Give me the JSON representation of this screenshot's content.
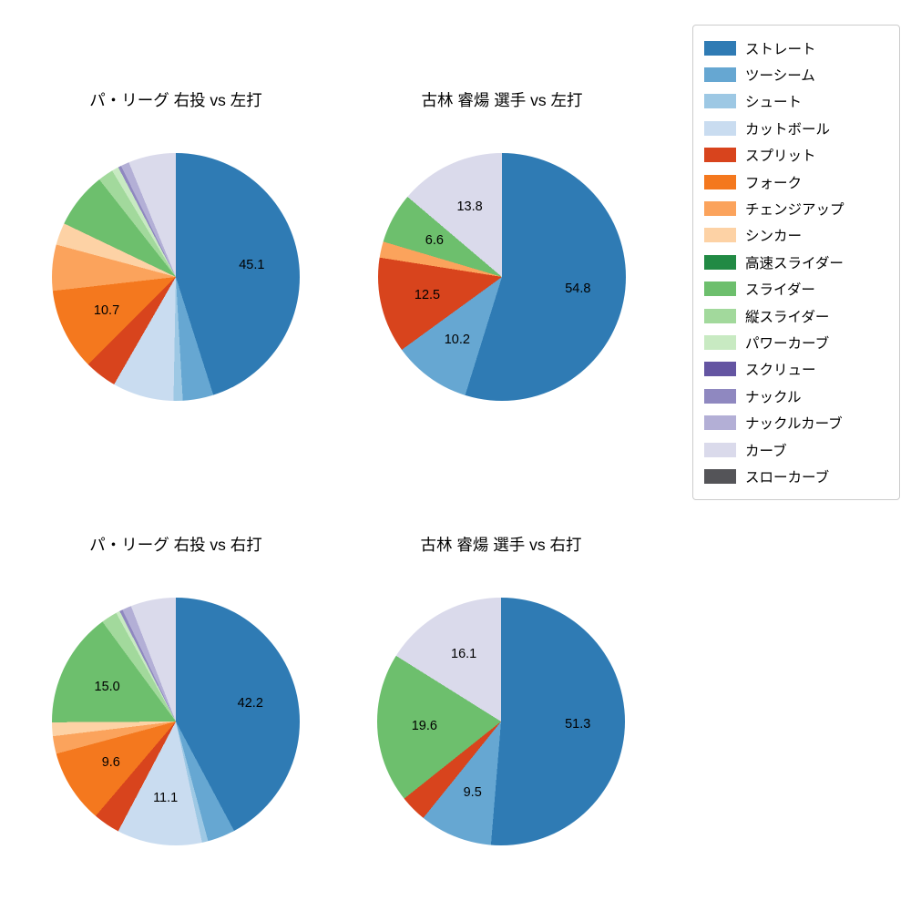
{
  "colors": {
    "ストレート": "#2f7bb4",
    "ツーシーム": "#66a7d2",
    "シュート": "#9dc8e4",
    "カットボール": "#c9dcf0",
    "スプリット": "#d8441d",
    "フォーク": "#f4781e",
    "チェンジアップ": "#fba35c",
    "シンカー": "#fdd2a5",
    "高速スライダー": "#218a44",
    "スライダー": "#6dbf6d",
    "縦スライダー": "#a2d99c",
    "パワーカーブ": "#c8eac2",
    "スクリュー": "#6455a2",
    "ナックル": "#8f88c0",
    "ナックルカーブ": "#b3afd6",
    "カーブ": "#dadaeb",
    "スローカーブ": "#545458"
  },
  "legend": {
    "items": [
      "ストレート",
      "ツーシーム",
      "シュート",
      "カットボール",
      "スプリット",
      "フォーク",
      "チェンジアップ",
      "シンカー",
      "高速スライダー",
      "スライダー",
      "縦スライダー",
      "パワーカーブ",
      "スクリュー",
      "ナックル",
      "ナックルカーブ",
      "カーブ",
      "スローカーブ"
    ]
  },
  "chart_data": [
    {
      "type": "pie",
      "title": "パ・リーグ 右投 vs 左打",
      "legend_position": "right",
      "slices": [
        {
          "name": "ストレート",
          "value": 45.1,
          "label": "45.1"
        },
        {
          "name": "ツーシーム",
          "value": 4.0,
          "label": ""
        },
        {
          "name": "シュート",
          "value": 1.2,
          "label": ""
        },
        {
          "name": "カットボール",
          "value": 8.0,
          "label": ""
        },
        {
          "name": "スプリット",
          "value": 4.2,
          "label": ""
        },
        {
          "name": "フォーク",
          "value": 10.7,
          "label": "10.7"
        },
        {
          "name": "チェンジアップ",
          "value": 6.0,
          "label": ""
        },
        {
          "name": "シンカー",
          "value": 2.9,
          "label": ""
        },
        {
          "name": "スライダー",
          "value": 7.3,
          "label": ""
        },
        {
          "name": "縦スライダー",
          "value": 2.0,
          "label": ""
        },
        {
          "name": "パワーカーブ",
          "value": 0.9,
          "label": ""
        },
        {
          "name": "ナックル",
          "value": 0.4,
          "label": ""
        },
        {
          "name": "ナックルカーブ",
          "value": 1.1,
          "label": ""
        },
        {
          "name": "カーブ",
          "value": 6.2,
          "label": ""
        }
      ]
    },
    {
      "type": "pie",
      "title": "古林 睿煬 選手 vs 左打",
      "legend_position": "right",
      "slices": [
        {
          "name": "ストレート",
          "value": 54.8,
          "label": "54.8"
        },
        {
          "name": "ツーシーム",
          "value": 10.2,
          "label": "10.2"
        },
        {
          "name": "スプリット",
          "value": 12.5,
          "label": "12.5"
        },
        {
          "name": "チェンジアップ",
          "value": 2.1,
          "label": ""
        },
        {
          "name": "スライダー",
          "value": 6.6,
          "label": "6.6"
        },
        {
          "name": "カーブ",
          "value": 13.8,
          "label": "13.8"
        }
      ]
    },
    {
      "type": "pie",
      "title": "パ・リーグ 右投 vs 右打",
      "legend_position": "right",
      "slices": [
        {
          "name": "ストレート",
          "value": 42.2,
          "label": "42.2"
        },
        {
          "name": "ツーシーム",
          "value": 3.6,
          "label": ""
        },
        {
          "name": "シュート",
          "value": 0.8,
          "label": ""
        },
        {
          "name": "カットボール",
          "value": 11.1,
          "label": "11.1"
        },
        {
          "name": "スプリット",
          "value": 3.5,
          "label": ""
        },
        {
          "name": "フォーク",
          "value": 9.6,
          "label": "9.6"
        },
        {
          "name": "チェンジアップ",
          "value": 2.3,
          "label": ""
        },
        {
          "name": "シンカー",
          "value": 1.8,
          "label": ""
        },
        {
          "name": "スライダー",
          "value": 15.0,
          "label": "15.0"
        },
        {
          "name": "縦スライダー",
          "value": 2.1,
          "label": ""
        },
        {
          "name": "パワーカーブ",
          "value": 0.5,
          "label": ""
        },
        {
          "name": "ナックル",
          "value": 0.4,
          "label": ""
        },
        {
          "name": "ナックルカーブ",
          "value": 1.2,
          "label": ""
        },
        {
          "name": "カーブ",
          "value": 5.9,
          "label": ""
        }
      ]
    },
    {
      "type": "pie",
      "title": "古林 睿煬 選手 vs 右打",
      "legend_position": "right",
      "slices": [
        {
          "name": "ストレート",
          "value": 51.3,
          "label": "51.3"
        },
        {
          "name": "ツーシーム",
          "value": 9.5,
          "label": "9.5"
        },
        {
          "name": "スプリット",
          "value": 3.5,
          "label": ""
        },
        {
          "name": "スライダー",
          "value": 19.6,
          "label": "19.6"
        },
        {
          "name": "カーブ",
          "value": 16.1,
          "label": "16.1"
        }
      ]
    }
  ]
}
